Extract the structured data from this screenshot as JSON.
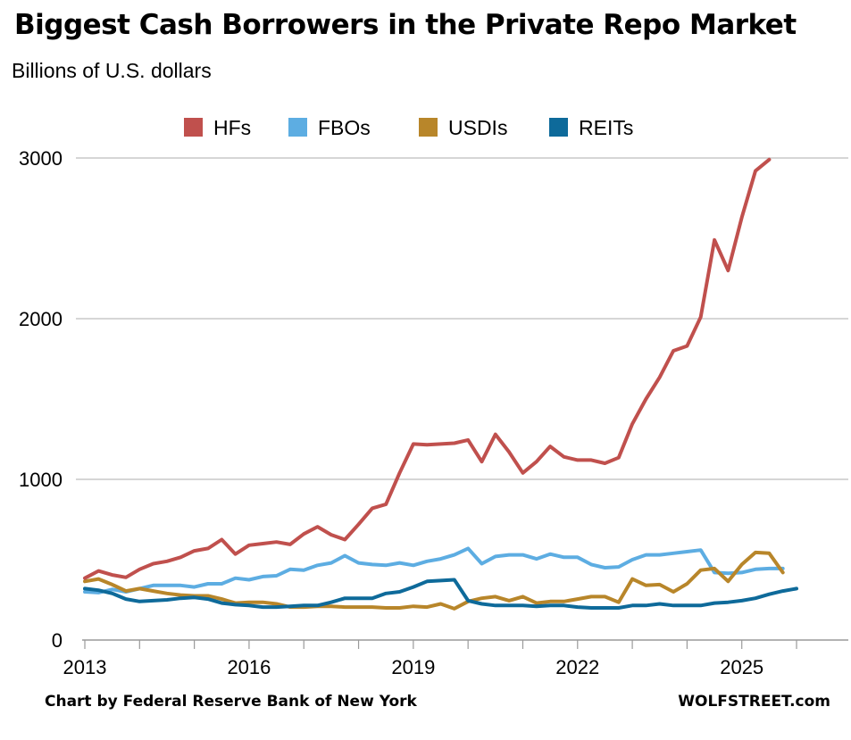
{
  "chart_data": {
    "type": "line",
    "title": "Biggest Cash Borrowers in the Private Repo Market",
    "subtitle": "Billions of U.S. dollars",
    "xlabel": "",
    "ylabel": "",
    "xlim": [
      2013,
      2026.75
    ],
    "ylim": [
      0,
      3000
    ],
    "x_ticks": [
      2013,
      2016,
      2019,
      2022,
      2025
    ],
    "y_ticks": [
      0,
      1000,
      2000,
      3000
    ],
    "grid": "horizontal",
    "legend_position": "top-center",
    "x": [
      2013.0,
      2013.25,
      2013.5,
      2013.75,
      2014.0,
      2014.25,
      2014.5,
      2014.75,
      2015.0,
      2015.25,
      2015.5,
      2015.75,
      2016.0,
      2016.25,
      2016.5,
      2016.75,
      2017.0,
      2017.25,
      2017.5,
      2017.75,
      2018.0,
      2018.25,
      2018.5,
      2018.75,
      2019.0,
      2019.25,
      2019.5,
      2019.75,
      2020.0,
      2020.25,
      2020.5,
      2020.75,
      2021.0,
      2021.25,
      2021.5,
      2021.75,
      2022.0,
      2022.25,
      2022.5,
      2022.75,
      2023.0,
      2023.25,
      2023.5,
      2023.75,
      2024.0,
      2024.25,
      2024.5,
      2024.75,
      2025.0,
      2025.25,
      2025.5,
      2025.75
    ],
    "series": [
      {
        "name": "HFs",
        "color": "#c0504d",
        "values": [
          385,
          430,
          405,
          390,
          440,
          475,
          490,
          515,
          555,
          570,
          625,
          535,
          590,
          600,
          610,
          595,
          660,
          705,
          655,
          625,
          720,
          820,
          845,
          1040,
          1220,
          1215,
          1220,
          1225,
          1245,
          1110,
          1280,
          1170,
          1040,
          1110,
          1205,
          1140,
          1120,
          1120,
          1100,
          1135,
          1345,
          1500,
          1635,
          1800,
          1830,
          2010,
          2490,
          2300,
          2630,
          2920,
          2990,
          null
        ]
      },
      {
        "name": "FBOs",
        "color": "#5dade2",
        "values": [
          300,
          295,
          315,
          300,
          320,
          340,
          340,
          340,
          330,
          350,
          350,
          385,
          375,
          395,
          400,
          440,
          435,
          465,
          480,
          525,
          480,
          470,
          465,
          480,
          465,
          490,
          505,
          530,
          570,
          475,
          520,
          530,
          530,
          505,
          535,
          515,
          515,
          470,
          450,
          455,
          500,
          530,
          530,
          540,
          550,
          560,
          420,
          415,
          420,
          440,
          445,
          445
        ]
      },
      {
        "name": "USDIs",
        "color": "#b8862a",
        "values": [
          365,
          380,
          345,
          305,
          320,
          305,
          290,
          280,
          275,
          275,
          255,
          230,
          235,
          235,
          225,
          205,
          205,
          210,
          210,
          205,
          205,
          205,
          200,
          200,
          210,
          205,
          225,
          195,
          240,
          260,
          270,
          245,
          270,
          230,
          240,
          240,
          255,
          270,
          270,
          235,
          380,
          340,
          345,
          300,
          350,
          435,
          445,
          365,
          470,
          545,
          540,
          420
        ]
      },
      {
        "name": "REITs",
        "color": "#0e6a9a",
        "values": [
          320,
          310,
          290,
          255,
          240,
          245,
          250,
          260,
          265,
          255,
          230,
          220,
          215,
          205,
          205,
          210,
          215,
          215,
          235,
          260,
          260,
          260,
          290,
          300,
          330,
          365,
          370,
          375,
          245,
          225,
          215,
          215,
          215,
          210,
          215,
          215,
          205,
          200,
          200,
          200,
          215,
          215,
          225,
          215,
          215,
          215,
          230,
          235,
          245,
          260,
          285,
          305
        ]
      }
    ],
    "reits_extension": {
      "x": 2026.0,
      "value": 320
    }
  },
  "footer": {
    "source": "Chart by Federal Reserve Bank of New York",
    "brand": "WOLFSTREET.com"
  }
}
